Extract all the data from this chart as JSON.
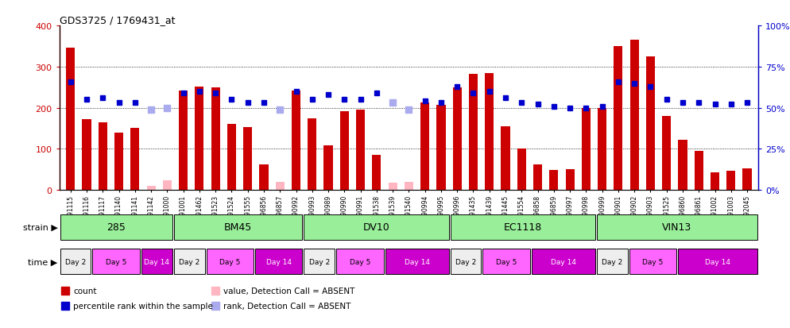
{
  "title": "GDS3725 / 1769431_at",
  "samples": [
    "GSM291115",
    "GSM291116",
    "GSM291117",
    "GSM291140",
    "GSM291141",
    "GSM291142",
    "GSM291000",
    "GSM291001",
    "GSM291462",
    "GSM291523",
    "GSM291524",
    "GSM291555",
    "GSM296856",
    "GSM296857",
    "GSM290992",
    "GSM290993",
    "GSM290989",
    "GSM290990",
    "GSM290991",
    "GSM291538",
    "GSM291539",
    "GSM291540",
    "GSM290994",
    "GSM290995",
    "GSM290996",
    "GSM291435",
    "GSM291439",
    "GSM291445",
    "GSM291554",
    "GSM296858",
    "GSM296859",
    "GSM290997",
    "GSM290998",
    "GSM290999",
    "GSM290901",
    "GSM290902",
    "GSM290903",
    "GSM291525",
    "GSM296860",
    "GSM296861",
    "GSM291002",
    "GSM291003",
    "GSM292045"
  ],
  "counts": [
    347,
    173,
    165,
    140,
    151,
    0,
    0,
    241,
    251,
    250,
    160,
    153,
    62,
    0,
    241,
    175,
    109,
    191,
    196,
    85,
    0,
    0,
    212,
    207,
    250,
    282,
    284,
    154,
    100,
    63,
    49,
    50,
    200,
    200,
    350,
    365,
    325,
    180,
    122,
    94,
    43,
    47,
    52
  ],
  "absent_counts": [
    0,
    0,
    0,
    0,
    0,
    10,
    23,
    0,
    0,
    0,
    0,
    0,
    0,
    20,
    0,
    0,
    0,
    0,
    0,
    0,
    18,
    20,
    0,
    0,
    0,
    0,
    0,
    0,
    0,
    0,
    0,
    0,
    0,
    0,
    0,
    0,
    0,
    0,
    0,
    0,
    0,
    0,
    0
  ],
  "percentile_vals": [
    66,
    55,
    56,
    53,
    53,
    49,
    50,
    59,
    60,
    59,
    55,
    53,
    53,
    49,
    60,
    55,
    58,
    55,
    55,
    59,
    53,
    49,
    54,
    53,
    63,
    59,
    60,
    56,
    53,
    52,
    51,
    50,
    50,
    51,
    66,
    65,
    63,
    55,
    53,
    53,
    52,
    52,
    53
  ],
  "absent_percentile_idx": [
    5,
    6,
    13,
    20,
    21
  ],
  "count_color": "#cc0000",
  "absent_count_color": "#ffb6c1",
  "percentile_color": "#0000cc",
  "absent_percentile_color": "#aaaaee",
  "ylim_left": [
    0,
    400
  ],
  "ylim_right": [
    0,
    100
  ],
  "yticks_left": [
    0,
    100,
    200,
    300,
    400
  ],
  "yticks_left_labels": [
    "0",
    "100",
    "200",
    "300",
    "400"
  ],
  "yticks_right": [
    0,
    25,
    50,
    75,
    100
  ],
  "yticks_right_labels": [
    "0%",
    "25%",
    "50%",
    "75%",
    "100%"
  ],
  "strains": [
    "285",
    "BM45",
    "DV10",
    "EC1118",
    "VIN13"
  ],
  "strain_ranges": [
    [
      0,
      7
    ],
    [
      7,
      15
    ],
    [
      15,
      24
    ],
    [
      24,
      33
    ],
    [
      33,
      43
    ]
  ],
  "strain_color": "#99ee99",
  "time_labels": [
    "Day 2",
    "Day 5",
    "Day 14",
    "Day 2",
    "Day 5",
    "Day 14",
    "Day 2",
    "Day 5",
    "Day 14",
    "Day 2",
    "Day 5",
    "Day 14",
    "Day 2",
    "Day 5",
    "Day 14"
  ],
  "time_ranges": [
    [
      0,
      2
    ],
    [
      2,
      5
    ],
    [
      5,
      7
    ],
    [
      7,
      9
    ],
    [
      9,
      12
    ],
    [
      12,
      15
    ],
    [
      15,
      17
    ],
    [
      17,
      20
    ],
    [
      20,
      24
    ],
    [
      24,
      26
    ],
    [
      26,
      29
    ],
    [
      29,
      33
    ],
    [
      33,
      35
    ],
    [
      35,
      38
    ],
    [
      38,
      43
    ]
  ],
  "time_colors": [
    "#eeeeee",
    "#ff66ff",
    "#cc00cc",
    "#eeeeee",
    "#ff66ff",
    "#cc00cc",
    "#eeeeee",
    "#ff66ff",
    "#cc00cc",
    "#eeeeee",
    "#ff66ff",
    "#cc00cc",
    "#eeeeee",
    "#ff66ff",
    "#cc00cc"
  ],
  "bg_color": "#ffffff"
}
